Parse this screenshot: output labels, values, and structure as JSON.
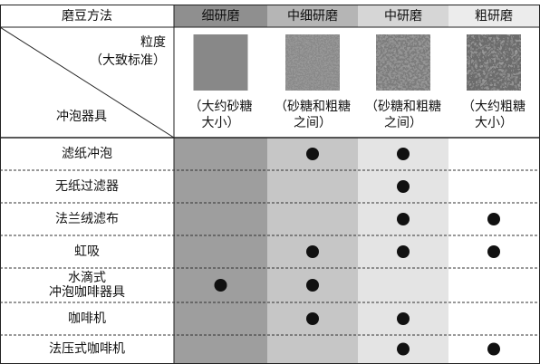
{
  "header": {
    "method": "磨豆方法",
    "grinds": [
      "细研磨",
      "中细研磨",
      "中研磨",
      "粗研磨"
    ]
  },
  "legend": {
    "grain": "粒度",
    "standard": "（大致标准）",
    "brewer": "冲泡器具"
  },
  "captions": [
    [
      "（大约砂糖",
      "大小）"
    ],
    [
      "（砂糖和粗糖",
      "之间）"
    ],
    [
      "（砂糖和粗糖",
      "之间）"
    ],
    [
      "（大约粗糖",
      "大小）"
    ]
  ],
  "rows": [
    {
      "name": [
        "滤纸冲泡"
      ],
      "marks": [
        false,
        true,
        true,
        false
      ]
    },
    {
      "name": [
        "无纸过滤器"
      ],
      "marks": [
        false,
        false,
        true,
        false
      ]
    },
    {
      "name": [
        "法兰绒滤布"
      ],
      "marks": [
        false,
        false,
        true,
        true
      ]
    },
    {
      "name": [
        "虹吸"
      ],
      "marks": [
        false,
        true,
        true,
        true
      ]
    },
    {
      "name": [
        "水滴式",
        "冲泡咖啡器具"
      ],
      "marks": [
        true,
        true,
        false,
        false
      ]
    },
    {
      "name": [
        "咖啡机"
      ],
      "marks": [
        false,
        true,
        true,
        false
      ]
    },
    {
      "name": [
        "法压式咖啡机"
      ],
      "marks": [
        false,
        false,
        true,
        true
      ]
    }
  ]
}
